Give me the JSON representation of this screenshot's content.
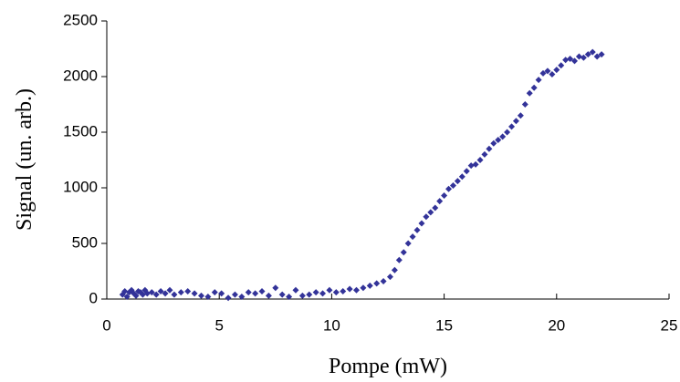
{
  "chart_data": {
    "type": "scatter",
    "x_label": "Pompe (mW)",
    "y_label": "Signal (un. arb.)",
    "xlim": [
      0,
      25
    ],
    "xticks": [
      0,
      5,
      10,
      15,
      20,
      25
    ],
    "ylim": [
      0,
      2500
    ],
    "yticks": [
      0,
      500,
      1000,
      1500,
      2000,
      2500
    ],
    "grid": false,
    "series": [
      {
        "color": "#333399",
        "x": [
          0.7,
          0.8,
          0.9,
          1.0,
          1.1,
          1.2,
          1.3,
          1.4,
          1.5,
          1.6,
          1.7,
          1.8,
          2.0,
          2.2,
          2.4,
          2.6,
          2.8,
          3.0,
          3.3,
          3.6,
          3.9,
          4.2,
          4.5,
          4.8,
          5.1,
          5.4,
          5.7,
          6.0,
          6.3,
          6.6,
          6.9,
          7.2,
          7.5,
          7.8,
          8.1,
          8.4,
          8.7,
          9.0,
          9.3,
          9.6,
          9.9,
          10.2,
          10.5,
          10.8,
          11.1,
          11.4,
          11.7,
          12.0,
          12.3,
          12.6,
          12.8,
          13.0,
          13.2,
          13.4,
          13.6,
          13.8,
          14.0,
          14.2,
          14.4,
          14.6,
          14.8,
          15.0,
          15.2,
          15.4,
          15.6,
          15.8,
          16.0,
          16.2,
          16.4,
          16.6,
          16.8,
          17.0,
          17.2,
          17.4,
          17.6,
          17.8,
          18.0,
          18.2,
          18.4,
          18.6,
          18.8,
          19.0,
          19.2,
          19.4,
          19.6,
          19.8,
          20.0,
          20.2,
          20.4,
          20.6,
          20.8,
          21.0,
          21.2,
          21.4,
          21.6,
          21.8,
          22.0
        ],
        "values": [
          40,
          70,
          20,
          60,
          80,
          50,
          30,
          70,
          60,
          40,
          80,
          50,
          60,
          40,
          70,
          50,
          80,
          40,
          60,
          70,
          50,
          30,
          20,
          60,
          50,
          10,
          40,
          20,
          60,
          50,
          70,
          30,
          100,
          40,
          20,
          80,
          30,
          40,
          60,
          50,
          80,
          60,
          70,
          90,
          80,
          100,
          120,
          140,
          160,
          200,
          260,
          350,
          420,
          500,
          560,
          620,
          680,
          740,
          780,
          820,
          880,
          930,
          990,
          1020,
          1060,
          1100,
          1150,
          1200,
          1210,
          1250,
          1300,
          1350,
          1400,
          1430,
          1460,
          1500,
          1550,
          1600,
          1650,
          1750,
          1850,
          1900,
          1970,
          2030,
          2050,
          2020,
          2060,
          2100,
          2150,
          2160,
          2140,
          2180,
          2170,
          2200,
          2220,
          2180,
          2200
        ]
      }
    ]
  }
}
